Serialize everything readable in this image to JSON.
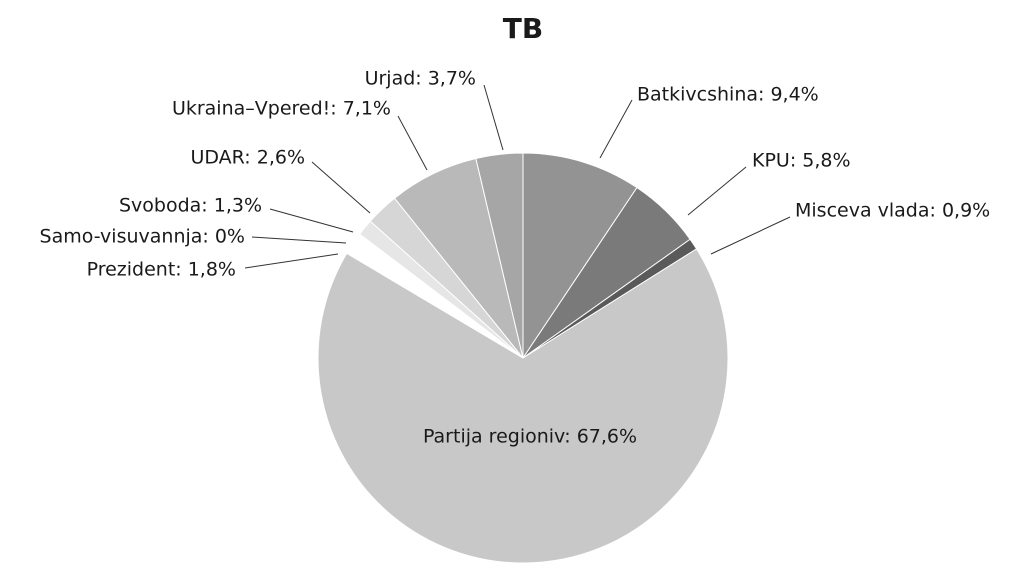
{
  "chart_data": {
    "type": "pie",
    "title": "TB",
    "values": [
      9.4,
      5.8,
      0.9,
      67.6,
      1.8,
      0,
      1.3,
      2.6,
      7.1,
      3.7
    ],
    "value_labels": [
      "Batkivcshina: 9,4%",
      "KPU: 5,8%",
      "Misceva vlada: 0,9%",
      "Partija regioniv: 67,6%",
      "Prezident: 1,8%",
      "Samo-visuvannja: 0%",
      "Svoboda: 1,3%",
      "UDAR: 2,6%",
      "Ukraina–Vpered!: 7,1%",
      "Urjad: 3,7%"
    ],
    "colors": [
      "#939393",
      "#7a7a7a",
      "#5a5a5a",
      "#c8c8c8",
      "#ffffff",
      "#dddddd",
      "#e6e6e6",
      "#d6d6d6",
      "#b9b9b9",
      "#a6a6a6"
    ]
  }
}
